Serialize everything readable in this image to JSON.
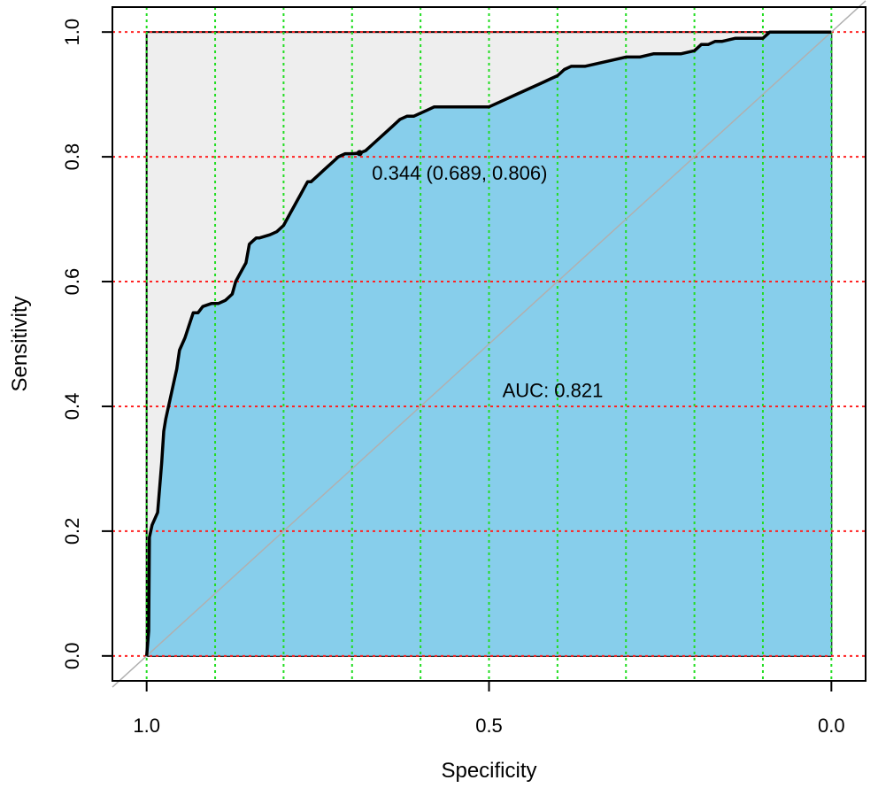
{
  "chart_data": {
    "type": "area",
    "xlabel": "Specificity",
    "ylabel": "Sensitivity",
    "x_reversed": true,
    "xlim": [
      1.05,
      -0.05
    ],
    "ylim": [
      -0.04,
      1.04
    ],
    "xticks": [
      1.0,
      0.5,
      0.0
    ],
    "xtick_labels": [
      "1.0",
      "0.5",
      "0.0"
    ],
    "yticks": [
      0.0,
      0.2,
      0.4,
      0.6,
      0.8,
      1.0
    ],
    "ytick_labels": [
      "0.0",
      "0.2",
      "0.4",
      "0.6",
      "0.8",
      "1.0"
    ],
    "grid": true,
    "grid_x": [
      1.0,
      0.9,
      0.8,
      0.7,
      0.6,
      0.5,
      0.4,
      0.3,
      0.2,
      0.1,
      0.0
    ],
    "grid_y": [
      0.0,
      0.2,
      0.4,
      0.6,
      0.8,
      1.0
    ],
    "colors": {
      "auc_fill": "#87CEEB",
      "partial_area_fill": "#EEEEEE",
      "curve": "#000000",
      "diagonal": "#B0B0B0",
      "grid_x": "#22DD22",
      "grid_y": "#FF2222"
    },
    "series": [
      {
        "specificity": [
          1.0,
          0.997,
          0.996,
          0.992,
          0.988,
          0.984,
          0.981,
          0.978,
          0.975,
          0.972,
          0.968,
          0.964,
          0.96,
          0.956,
          0.952,
          0.948,
          0.944,
          0.938,
          0.932,
          0.925,
          0.918,
          0.905,
          0.895,
          0.885,
          0.875,
          0.87,
          0.865,
          0.86,
          0.855,
          0.85,
          0.845,
          0.84,
          0.835,
          0.82,
          0.81,
          0.8,
          0.79,
          0.785,
          0.78,
          0.775,
          0.77,
          0.765,
          0.76,
          0.75,
          0.74,
          0.73,
          0.72,
          0.71,
          0.7,
          0.689,
          0.68,
          0.67,
          0.66,
          0.65,
          0.64,
          0.63,
          0.62,
          0.61,
          0.6,
          0.59,
          0.58,
          0.57,
          0.56,
          0.55,
          0.54,
          0.53,
          0.52,
          0.51,
          0.5,
          0.48,
          0.46,
          0.45,
          0.44,
          0.43,
          0.42,
          0.41,
          0.4,
          0.39,
          0.38,
          0.37,
          0.36,
          0.34,
          0.32,
          0.3,
          0.28,
          0.26,
          0.24,
          0.22,
          0.2,
          0.19,
          0.18,
          0.17,
          0.16,
          0.14,
          0.12,
          0.11,
          0.1,
          0.09,
          0.08,
          0.06,
          0.04,
          0.02,
          0.0
        ],
        "sensitivity": [
          0.0,
          0.04,
          0.19,
          0.21,
          0.22,
          0.23,
          0.27,
          0.31,
          0.36,
          0.38,
          0.4,
          0.42,
          0.44,
          0.46,
          0.49,
          0.5,
          0.51,
          0.53,
          0.55,
          0.55,
          0.56,
          0.565,
          0.565,
          0.57,
          0.58,
          0.6,
          0.61,
          0.62,
          0.63,
          0.66,
          0.665,
          0.67,
          0.67,
          0.675,
          0.68,
          0.69,
          0.71,
          0.72,
          0.73,
          0.74,
          0.75,
          0.76,
          0.76,
          0.77,
          0.78,
          0.79,
          0.8,
          0.805,
          0.805,
          0.806,
          0.81,
          0.82,
          0.83,
          0.84,
          0.85,
          0.86,
          0.865,
          0.865,
          0.87,
          0.875,
          0.88,
          0.88,
          0.88,
          0.88,
          0.88,
          0.88,
          0.88,
          0.88,
          0.88,
          0.89,
          0.9,
          0.905,
          0.91,
          0.915,
          0.92,
          0.925,
          0.93,
          0.94,
          0.945,
          0.945,
          0.945,
          0.95,
          0.955,
          0.96,
          0.96,
          0.965,
          0.965,
          0.965,
          0.97,
          0.98,
          0.98,
          0.985,
          0.985,
          0.99,
          0.99,
          0.99,
          0.99,
          1.0,
          1.0,
          1.0,
          1.0,
          1.0,
          1.0
        ]
      }
    ],
    "threshold_point": {
      "specificity": 0.689,
      "sensitivity": 0.806
    },
    "annotations": {
      "threshold": "0.344 (0.689, 0.806)",
      "auc": "AUC: 0.821"
    }
  }
}
